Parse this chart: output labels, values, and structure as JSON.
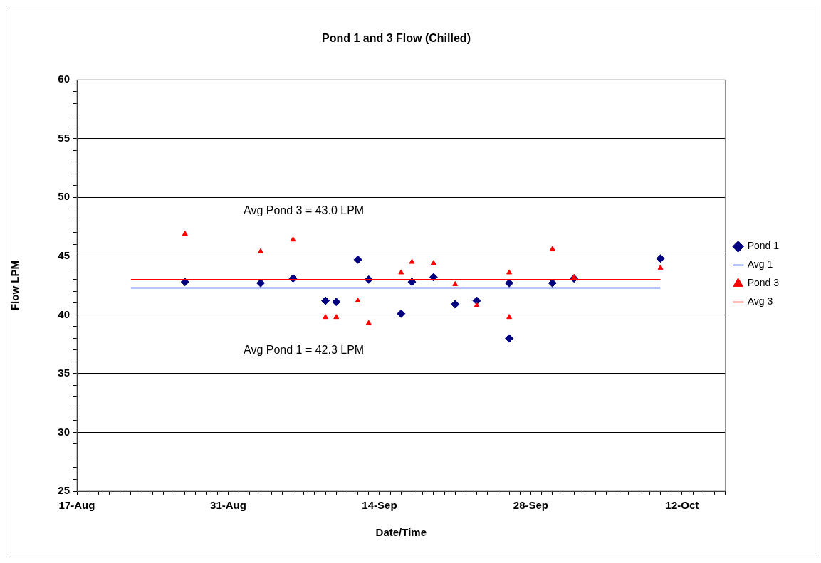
{
  "chart_data": {
    "type": "scatter",
    "title": "Pond 1 and 3 Flow (Chilled)",
    "xlabel": "Date/Time",
    "ylabel": "Flow LPM",
    "annotations": [
      "Avg Pond 3 = 43.0 LPM",
      "Avg Pond 1 = 42.3 LPM"
    ],
    "series": [
      {
        "name": "Pond 1",
        "color": "#000080",
        "marker": "diamond",
        "x": [
          "--08-27",
          "--09-03",
          "--09-06",
          "--09-09",
          "--09-10",
          "--09-12",
          "--09-13",
          "--09-16",
          "--09-17",
          "--09-19",
          "--09-21",
          "--09-23",
          "--09-26",
          "--09-26",
          "--09-30",
          "--10-02",
          "--10-10"
        ],
        "values": [
          42.8,
          42.7,
          43.1,
          41.2,
          41.1,
          44.7,
          43.0,
          40.1,
          42.8,
          43.2,
          40.9,
          41.2,
          42.7,
          38.0,
          42.7,
          43.1,
          44.8
        ]
      },
      {
        "name": "Avg 1",
        "type": "line",
        "color": "#0000ff",
        "marker": "none",
        "x": [
          "--08-22",
          "--10-10"
        ],
        "values": [
          42.3,
          42.3
        ]
      },
      {
        "name": "Pond 3",
        "color": "#ff0000",
        "marker": "triangle",
        "x": [
          "--08-27",
          "--09-03",
          "--09-06",
          "--09-09",
          "--09-10",
          "--09-12",
          "--09-13",
          "--09-16",
          "--09-17",
          "--09-19",
          "--09-21",
          "--09-23",
          "--09-26",
          "--09-26",
          "--09-30",
          "--10-02",
          "--10-10"
        ],
        "values": [
          46.9,
          45.4,
          46.4,
          39.8,
          39.8,
          41.2,
          39.3,
          43.6,
          44.5,
          44.4,
          42.6,
          40.8,
          43.6,
          39.8,
          45.6,
          43.2,
          44.0
        ]
      },
      {
        "name": "Avg 3",
        "type": "line",
        "color": "#ff0000",
        "marker": "none",
        "x": [
          "--08-22",
          "--10-10"
        ],
        "values": [
          43.0,
          43.0
        ]
      }
    ],
    "xlim": [
      "--08-17",
      "--10-16"
    ],
    "xticks": [
      {
        "value": "--08-17",
        "label": "17-Aug"
      },
      {
        "value": "--08-18",
        "label": null
      },
      {
        "value": "--08-19",
        "label": null
      },
      {
        "value": "--08-20",
        "label": null
      },
      {
        "value": "--08-21",
        "label": null
      },
      {
        "value": "--08-22",
        "label": null
      },
      {
        "value": "--08-23",
        "label": null
      },
      {
        "value": "--08-24",
        "label": null
      },
      {
        "value": "--08-25",
        "label": null
      },
      {
        "value": "--08-26",
        "label": null
      },
      {
        "value": "--08-27",
        "label": null
      },
      {
        "value": "--08-28",
        "label": null
      },
      {
        "value": "--08-29",
        "label": null
      },
      {
        "value": "--08-30",
        "label": null
      },
      {
        "value": "--08-31",
        "label": "31-Aug"
      },
      {
        "value": "--09-01",
        "label": null
      },
      {
        "value": "--09-02",
        "label": null
      },
      {
        "value": "--09-03",
        "label": null
      },
      {
        "value": "--09-04",
        "label": null
      },
      {
        "value": "--09-05",
        "label": null
      },
      {
        "value": "--09-06",
        "label": null
      },
      {
        "value": "--09-07",
        "label": null
      },
      {
        "value": "--09-08",
        "label": null
      },
      {
        "value": "--09-09",
        "label": null
      },
      {
        "value": "--09-10",
        "label": null
      },
      {
        "value": "--09-11",
        "label": null
      },
      {
        "value": "--09-12",
        "label": null
      },
      {
        "value": "--09-13",
        "label": null
      },
      {
        "value": "--09-14",
        "label": "14-Sep"
      },
      {
        "value": "--09-15",
        "label": null
      },
      {
        "value": "--09-16",
        "label": null
      },
      {
        "value": "--09-17",
        "label": null
      },
      {
        "value": "--09-18",
        "label": null
      },
      {
        "value": "--09-19",
        "label": null
      },
      {
        "value": "--09-20",
        "label": null
      },
      {
        "value": "--09-21",
        "label": null
      },
      {
        "value": "--09-22",
        "label": null
      },
      {
        "value": "--09-23",
        "label": null
      },
      {
        "value": "--09-24",
        "label": null
      },
      {
        "value": "--09-25",
        "label": null
      },
      {
        "value": "--09-26",
        "label": null
      },
      {
        "value": "--09-27",
        "label": null
      },
      {
        "value": "--09-28",
        "label": "28-Sep"
      },
      {
        "value": "--09-29",
        "label": null
      },
      {
        "value": "--09-30",
        "label": null
      },
      {
        "value": "--10-01",
        "label": null
      },
      {
        "value": "--10-02",
        "label": null
      },
      {
        "value": "--10-03",
        "label": null
      },
      {
        "value": "--10-04",
        "label": null
      },
      {
        "value": "--10-05",
        "label": null
      },
      {
        "value": "--10-06",
        "label": null
      },
      {
        "value": "--10-07",
        "label": null
      },
      {
        "value": "--10-08",
        "label": null
      },
      {
        "value": "--10-09",
        "label": null
      },
      {
        "value": "--10-10",
        "label": null
      },
      {
        "value": "--10-11",
        "label": null
      },
      {
        "value": "--10-12",
        "label": "12-Oct"
      },
      {
        "value": "--10-13",
        "label": null
      },
      {
        "value": "--10-14",
        "label": null
      },
      {
        "value": "--10-15",
        "label": null
      },
      {
        "value": "--10-16",
        "label": null
      }
    ],
    "ylim": [
      25,
      60
    ],
    "yticks": [
      25,
      {
        "value": 26,
        "label": null
      },
      {
        "value": 27,
        "label": null
      },
      {
        "value": 28,
        "label": null
      },
      {
        "value": 29,
        "label": null
      },
      30,
      {
        "value": 31,
        "label": null
      },
      {
        "value": 32,
        "label": null
      },
      {
        "value": 33,
        "label": null
      },
      {
        "value": 34,
        "label": null
      },
      35,
      {
        "value": 36,
        "label": null
      },
      {
        "value": 37,
        "label": null
      },
      {
        "value": 38,
        "label": null
      },
      {
        "value": 39,
        "label": null
      },
      40,
      {
        "value": 41,
        "label": null
      },
      {
        "value": 42,
        "label": null
      },
      {
        "value": 43,
        "label": null
      },
      {
        "value": 44,
        "label": null
      },
      45,
      {
        "value": 46,
        "label": null
      },
      {
        "value": 47,
        "label": null
      },
      {
        "value": 48,
        "label": null
      },
      {
        "value": 49,
        "label": null
      },
      50,
      {
        "value": 51,
        "label": null
      },
      {
        "value": 52,
        "label": null
      },
      {
        "value": 53,
        "label": null
      },
      {
        "value": 54,
        "label": null
      },
      55,
      {
        "value": 56,
        "label": null
      },
      {
        "value": 57,
        "label": null
      },
      {
        "value": 58,
        "label": null
      },
      {
        "value": 59,
        "label": null
      },
      60
    ],
    "grid": "y",
    "legend": "right"
  }
}
